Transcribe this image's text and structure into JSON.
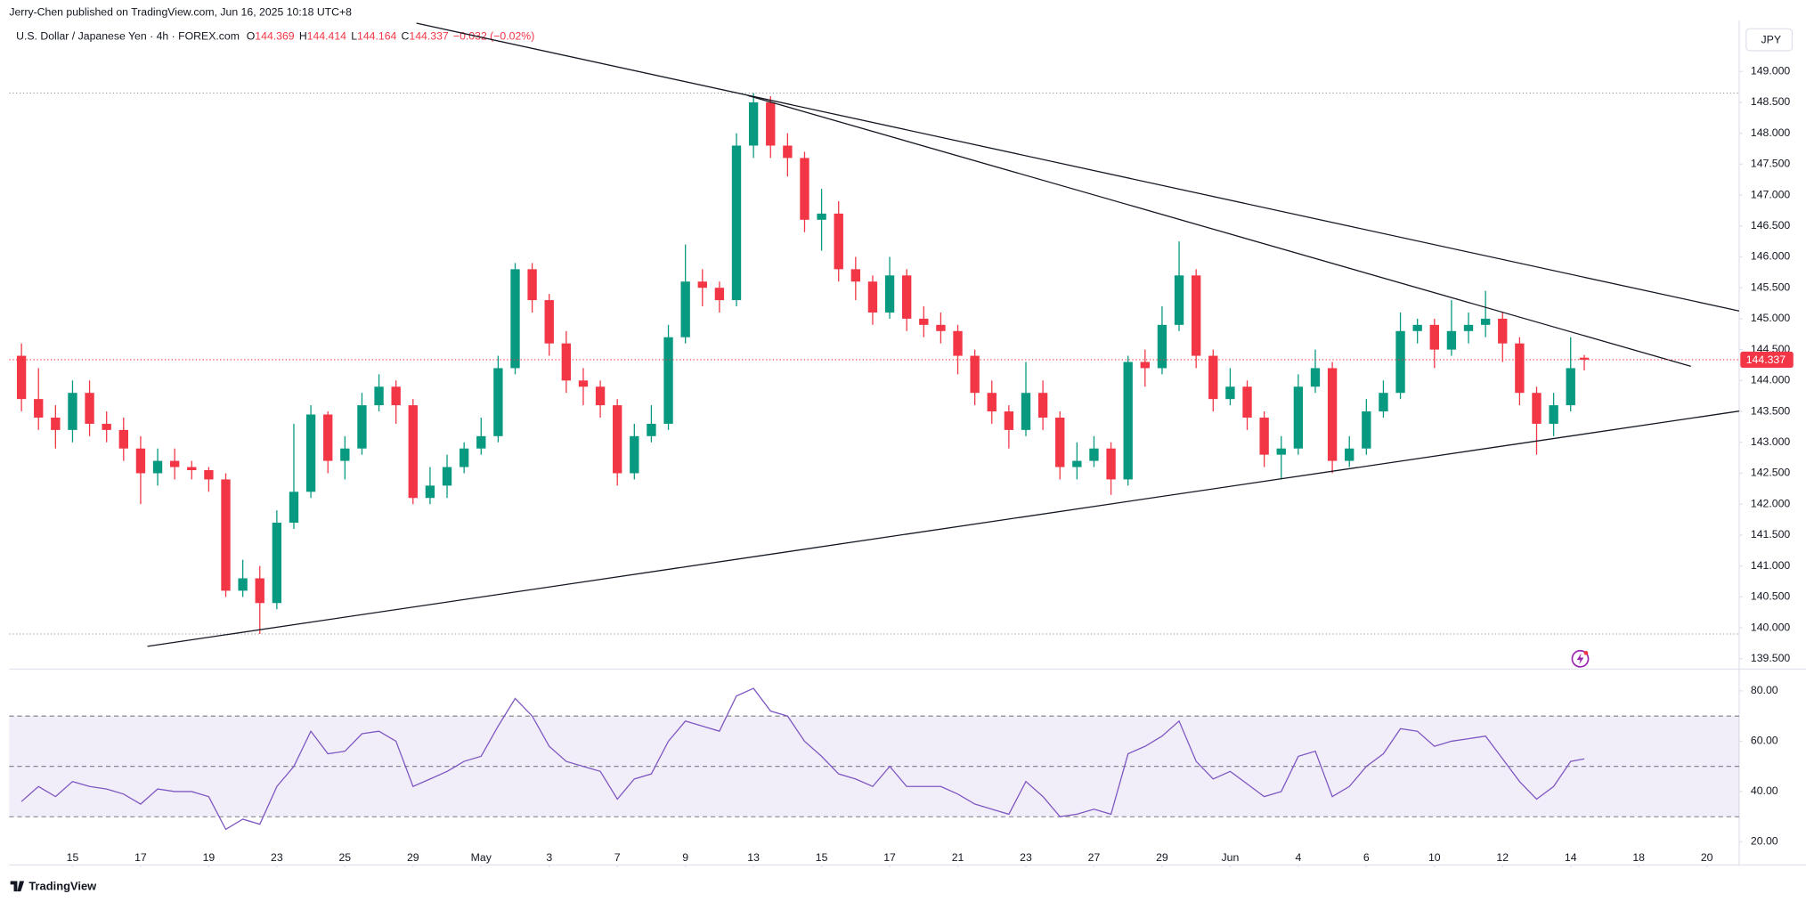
{
  "header": {
    "publisher": "Jerry-Chen published on TradingView.com, Jun 16, 2025 10:18 UTC+8",
    "symbol": "U.S. Dollar / Japanese Yen · 4h · FOREX.com",
    "ohlc": [
      {
        "label": "O",
        "value": 144.369
      },
      {
        "label": "H",
        "value": 144.414
      },
      {
        "label": "L",
        "value": 144.164
      },
      {
        "label": "C",
        "value": 144.337
      }
    ],
    "change": "−0.032 (−0.02%)"
  },
  "currency": "JPY",
  "brand": "TradingView",
  "chart_data": [
    {
      "type": "candlestick",
      "up_color": "#089981",
      "down_color": "#f23645",
      "last_price": 144.337,
      "last_price_color": "#f23645",
      "x": [
        -1.5,
        -1,
        -0.5,
        0,
        0.5,
        1,
        1.5,
        2,
        2.5,
        3,
        3.5,
        4,
        4.5,
        5,
        5.5,
        6,
        6.5,
        7,
        7.5,
        8,
        8.5,
        9,
        9.5,
        10,
        10.5,
        11,
        11.5,
        12,
        12.5,
        13,
        13.5,
        14,
        14.5,
        15,
        15.5,
        16,
        16.5,
        17,
        17.5,
        18,
        18.5,
        19,
        19.5,
        20,
        20.5,
        21,
        21.5,
        22,
        22.5,
        23,
        23.5,
        24,
        24.5,
        25,
        25.5,
        26,
        26.5,
        27,
        27.5,
        28,
        28.5,
        29,
        29.5,
        30,
        30.5,
        31,
        31.5,
        32,
        32.5,
        33,
        33.5,
        34,
        34.5,
        35,
        35.5,
        36,
        36.5,
        37,
        37.5,
        38,
        38.5,
        39,
        39.5,
        40,
        40.5,
        41,
        41.5,
        42,
        42.5,
        43,
        43.5,
        44,
        44.4
      ],
      "open": [
        144.4,
        143.7,
        143.4,
        143.2,
        143.8,
        143.3,
        143.2,
        142.9,
        142.5,
        142.7,
        142.6,
        142.55,
        142.4,
        140.6,
        140.8,
        140.4,
        141.7,
        142.2,
        143.45,
        142.7,
        142.9,
        143.6,
        143.9,
        143.6,
        142.1,
        142.3,
        142.6,
        142.9,
        143.1,
        144.2,
        145.8,
        145.3,
        144.6,
        144.0,
        143.9,
        143.6,
        142.5,
        143.1,
        143.3,
        144.7,
        145.6,
        145.5,
        145.3,
        147.8,
        148.5,
        147.8,
        147.6,
        146.6,
        146.7,
        145.8,
        145.6,
        145.1,
        145.7,
        145.0,
        144.9,
        144.8,
        144.4,
        143.8,
        143.5,
        143.2,
        143.8,
        143.4,
        142.6,
        142.7,
        142.9,
        142.4,
        144.3,
        144.2,
        144.9,
        145.7,
        144.4,
        143.7,
        143.9,
        143.4,
        142.8,
        142.9,
        143.9,
        144.2,
        142.7,
        142.9,
        143.5,
        143.8,
        144.8,
        144.9,
        144.5,
        144.8,
        144.9,
        145.0,
        144.6,
        143.8,
        143.3,
        143.6,
        144.369
      ],
      "high": [
        144.6,
        144.2,
        143.6,
        144.0,
        144.0,
        143.5,
        143.4,
        143.1,
        142.9,
        142.9,
        142.7,
        142.6,
        142.5,
        141.1,
        141.0,
        141.9,
        143.3,
        143.6,
        143.5,
        143.1,
        143.8,
        144.1,
        144.0,
        143.7,
        142.6,
        142.8,
        143.0,
        143.4,
        144.4,
        145.9,
        145.9,
        145.4,
        144.8,
        144.2,
        144.0,
        143.7,
        143.3,
        143.6,
        144.9,
        146.2,
        145.8,
        145.6,
        148.0,
        148.65,
        148.6,
        148.0,
        147.7,
        147.1,
        146.9,
        146.0,
        145.7,
        146.0,
        145.8,
        145.2,
        145.1,
        144.9,
        144.5,
        144.0,
        143.6,
        144.3,
        144.0,
        143.5,
        143.0,
        143.1,
        143.0,
        144.4,
        144.5,
        145.2,
        146.25,
        145.8,
        144.5,
        144.2,
        144.0,
        143.5,
        143.1,
        144.1,
        144.5,
        144.3,
        143.1,
        143.7,
        144.0,
        145.1,
        145.0,
        145.0,
        145.3,
        145.1,
        145.45,
        145.1,
        144.7,
        143.9,
        143.8,
        144.7,
        144.414
      ],
      "low": [
        143.5,
        143.2,
        142.9,
        143.0,
        143.1,
        143.0,
        142.7,
        142.0,
        142.3,
        142.4,
        142.4,
        142.2,
        140.5,
        140.5,
        139.9,
        140.3,
        141.6,
        142.1,
        142.5,
        142.4,
        142.8,
        143.5,
        143.3,
        142.0,
        142.0,
        142.1,
        142.5,
        142.8,
        143.0,
        144.1,
        145.1,
        144.4,
        143.8,
        143.6,
        143.4,
        142.3,
        142.4,
        143.0,
        143.2,
        144.6,
        145.2,
        145.1,
        145.2,
        147.6,
        147.6,
        147.3,
        146.4,
        146.1,
        145.6,
        145.3,
        144.9,
        145.0,
        144.8,
        144.7,
        144.6,
        144.1,
        143.6,
        143.3,
        142.9,
        143.1,
        143.2,
        142.4,
        142.4,
        142.6,
        142.15,
        142.3,
        143.9,
        144.1,
        144.8,
        144.2,
        143.5,
        143.6,
        143.2,
        142.6,
        142.4,
        142.8,
        143.8,
        142.5,
        142.6,
        142.8,
        143.4,
        143.7,
        144.6,
        144.2,
        144.4,
        144.6,
        144.7,
        144.3,
        143.6,
        142.8,
        143.1,
        143.5,
        144.164
      ],
      "close": [
        143.7,
        143.4,
        143.2,
        143.8,
        143.3,
        143.2,
        142.9,
        142.5,
        142.7,
        142.6,
        142.55,
        142.4,
        140.6,
        140.8,
        140.4,
        141.7,
        142.2,
        143.45,
        142.7,
        142.9,
        143.6,
        143.9,
        143.6,
        142.1,
        142.3,
        142.6,
        142.9,
        143.1,
        144.2,
        145.8,
        145.3,
        144.6,
        144.0,
        143.9,
        143.6,
        142.5,
        143.1,
        143.3,
        144.7,
        145.6,
        145.5,
        145.3,
        147.8,
        148.5,
        147.8,
        147.6,
        146.6,
        146.7,
        145.8,
        145.6,
        145.1,
        145.7,
        145.0,
        144.9,
        144.8,
        144.4,
        143.8,
        143.5,
        143.2,
        143.8,
        143.4,
        142.6,
        142.7,
        142.9,
        142.4,
        144.3,
        144.2,
        144.9,
        145.7,
        144.4,
        143.7,
        143.9,
        143.4,
        142.8,
        142.9,
        143.9,
        144.2,
        142.7,
        142.9,
        143.5,
        143.8,
        144.8,
        144.9,
        144.5,
        144.8,
        144.9,
        145.0,
        144.6,
        143.8,
        143.3,
        143.6,
        144.2,
        144.337
      ],
      "trendlines": [
        {
          "x": [
            10.1,
            48.95
          ],
          "y": [
            149.78,
            145.125
          ]
        },
        {
          "x": [
            19.83,
            47.53
          ],
          "y": [
            148.61,
            144.23
          ]
        },
        {
          "x": [
            2.2,
            48.95
          ],
          "y": [
            139.7,
            143.505
          ]
        }
      ],
      "hlines": [
        148.65,
        139.9
      ],
      "xlim": [
        -1.86,
        48.95
      ],
      "ylim": [
        139.35,
        149.745
      ],
      "yticks": [
        {
          "value": 139.5,
          "label": "139.500"
        },
        {
          "value": 140,
          "label": "140.000"
        },
        {
          "value": 140.5,
          "label": "140.500"
        },
        {
          "value": 141,
          "label": "141.000"
        },
        {
          "value": 141.5,
          "label": "141.500"
        },
        {
          "value": 142,
          "label": "142.000"
        },
        {
          "value": 142.5,
          "label": "142.500"
        },
        {
          "value": 143,
          "label": "143.000"
        },
        {
          "value": 143.5,
          "label": "143.500"
        },
        {
          "value": 144,
          "label": "144.000"
        },
        {
          "value": 144.5,
          "label": "144.500"
        },
        {
          "value": 145,
          "label": "145.000"
        },
        {
          "value": 145.5,
          "label": "145.500"
        },
        {
          "value": 146,
          "label": "146.000"
        },
        {
          "value": 146.5,
          "label": "146.500"
        },
        {
          "value": 147,
          "label": "147.000"
        },
        {
          "value": 147.5,
          "label": "147.500"
        },
        {
          "value": 148,
          "label": "148.000"
        },
        {
          "value": 148.5,
          "label": "148.500"
        },
        {
          "value": 149,
          "label": "149.000"
        }
      ]
    },
    {
      "type": "line",
      "color": "#7e57c2",
      "x": [
        -1.5,
        -1,
        -0.5,
        0,
        0.5,
        1,
        1.5,
        2,
        2.5,
        3,
        3.5,
        4,
        4.5,
        5,
        5.5,
        6,
        6.5,
        7,
        7.5,
        8,
        8.5,
        9,
        9.5,
        10,
        10.5,
        11,
        11.5,
        12,
        12.5,
        13,
        13.5,
        14,
        14.5,
        15,
        15.5,
        16,
        16.5,
        17,
        17.5,
        18,
        18.5,
        19,
        19.5,
        20,
        20.5,
        21,
        21.5,
        22,
        22.5,
        23,
        23.5,
        24,
        24.5,
        25,
        25.5,
        26,
        26.5,
        27,
        27.5,
        28,
        28.5,
        29,
        29.5,
        30,
        30.5,
        31,
        31.5,
        32,
        32.5,
        33,
        33.5,
        34,
        34.5,
        35,
        35.5,
        36,
        36.5,
        37,
        37.5,
        38,
        38.5,
        39,
        39.5,
        40,
        40.5,
        41,
        41.5,
        42,
        42.5,
        43,
        43.5,
        44,
        44.4
      ],
      "values": [
        36,
        42,
        38,
        44,
        42,
        41,
        39,
        35,
        41,
        40,
        40,
        38,
        25,
        29,
        27,
        42,
        50,
        64,
        55,
        56,
        63,
        64,
        60,
        42,
        45,
        48,
        52,
        54,
        66,
        77,
        70,
        58,
        52,
        50,
        48,
        37,
        45,
        47,
        60,
        68,
        66,
        64,
        78,
        81,
        72,
        70,
        60,
        54,
        47,
        45,
        42,
        50,
        42,
        42,
        42,
        39,
        35,
        33,
        31,
        44,
        38,
        30,
        31,
        33,
        31,
        55,
        58,
        62,
        68,
        52,
        45,
        48,
        43,
        38,
        40,
        54,
        56,
        38,
        42,
        50,
        55,
        65,
        64,
        58,
        60,
        61,
        62,
        53,
        44,
        37,
        42,
        52,
        53
      ],
      "band": [
        30,
        70
      ],
      "levels": [
        70,
        50,
        30
      ],
      "xlim": [
        -1.86,
        48.95
      ],
      "ylim": [
        11.3,
        88.2
      ],
      "yticks": [
        {
          "value": 20,
          "label": "20.00"
        },
        {
          "value": 40,
          "label": "40.00"
        },
        {
          "value": 60,
          "label": "60.00"
        },
        {
          "value": 80,
          "label": "80.00"
        }
      ],
      "xticks": [
        {
          "value": 0,
          "label": "15"
        },
        {
          "value": 2,
          "label": "17"
        },
        {
          "value": 4,
          "label": "19"
        },
        {
          "value": 6,
          "label": "23"
        },
        {
          "value": 8,
          "label": "25"
        },
        {
          "value": 10,
          "label": "29"
        },
        {
          "value": 12,
          "label": "May"
        },
        {
          "value": 14,
          "label": "3"
        },
        {
          "value": 16,
          "label": "7"
        },
        {
          "value": 18,
          "label": "9"
        },
        {
          "value": 20,
          "label": "13"
        },
        {
          "value": 22,
          "label": "15"
        },
        {
          "value": 24,
          "label": "17"
        },
        {
          "value": 26,
          "label": "21"
        },
        {
          "value": 28,
          "label": "23"
        },
        {
          "value": 30,
          "label": "27"
        },
        {
          "value": 32,
          "label": "29"
        },
        {
          "value": 34,
          "label": "Jun"
        },
        {
          "value": 36,
          "label": "4"
        },
        {
          "value": 38,
          "label": "6"
        },
        {
          "value": 40,
          "label": "10"
        },
        {
          "value": 42,
          "label": "12"
        },
        {
          "value": 44,
          "label": "14"
        },
        {
          "value": 46,
          "label": "18"
        },
        {
          "value": 48,
          "label": "20"
        }
      ]
    }
  ]
}
